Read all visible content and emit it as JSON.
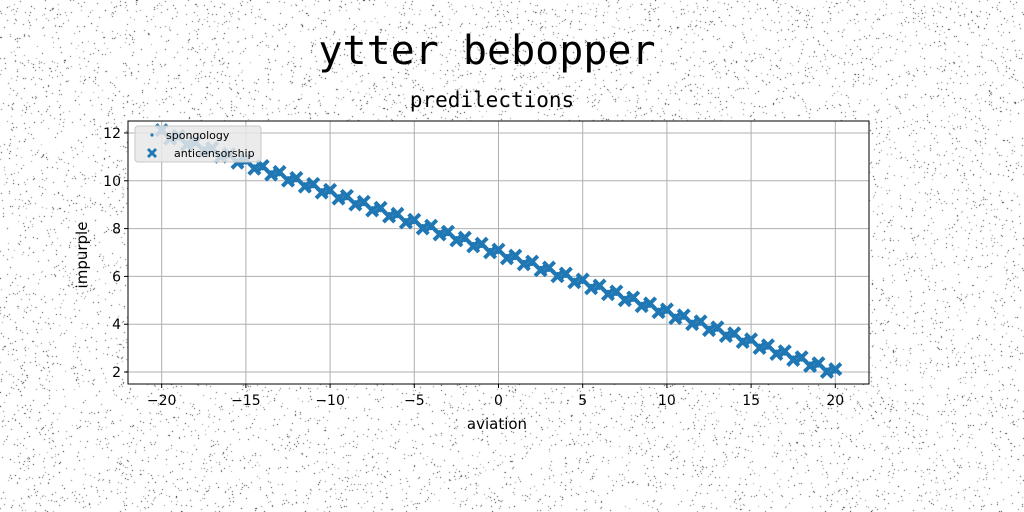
{
  "chart_data": {
    "type": "scatter",
    "suptitle": "ytter bebopper",
    "title": "predilections",
    "xlabel": "aviation",
    "ylabel": "impurple",
    "xlim": [
      -22,
      22
    ],
    "ylim": [
      1.5,
      12.5
    ],
    "xticks": [
      -20,
      -15,
      -10,
      -5,
      0,
      5,
      10,
      15,
      20
    ],
    "yticks": [
      2,
      4,
      6,
      8,
      10,
      12
    ],
    "grid": true,
    "legend_position": "upper-left",
    "series": [
      {
        "name": "spongology",
        "marker": "point",
        "color": "#1f77b4",
        "x_start": -20,
        "x_end": 20,
        "count": 81,
        "y_start": 12,
        "y_end": 2
      },
      {
        "name": "anticensorship",
        "marker": "x-filled",
        "color": "#1f77b4",
        "x_start": -20,
        "x_end": 20,
        "count": 81,
        "y_start": 12,
        "y_end": 2
      }
    ]
  }
}
